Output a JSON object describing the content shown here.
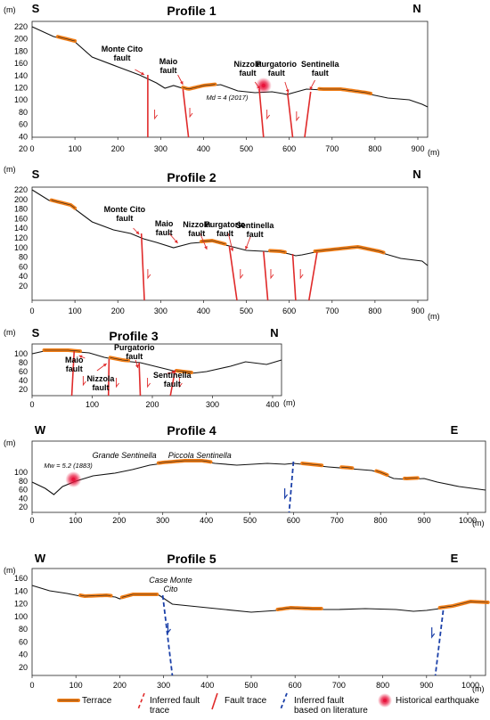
{
  "units": {
    "y": "(m)",
    "x": "(m)"
  },
  "profiles": [
    {
      "title": "Profile 1",
      "left": "S",
      "right": "N",
      "y_ticks": [
        "220",
        "200",
        "180",
        "160",
        "140",
        "120",
        "100",
        "80",
        "60",
        "40",
        "20"
      ],
      "x_ticks": [
        "0",
        "100",
        "200",
        "300",
        "400",
        "500",
        "600",
        "700",
        "800",
        "900"
      ],
      "faults": [
        {
          "label": "Monte Cito\nfault"
        },
        {
          "label": "Maio\nfault"
        },
        {
          "label": "Nizzola\nfault"
        },
        {
          "label": "Purgatorio\nfault"
        },
        {
          "label": "Sentinella\nfault"
        }
      ],
      "quake": {
        "label": "Md = 4 (2017)"
      }
    },
    {
      "title": "Profile 2",
      "left": "S",
      "right": "N",
      "y_ticks": [
        "220",
        "200",
        "180",
        "160",
        "140",
        "120",
        "100",
        "80",
        "60",
        "40",
        "20"
      ],
      "x_ticks": [
        "0",
        "100",
        "200",
        "300",
        "400",
        "500",
        "600",
        "700",
        "800",
        "900"
      ],
      "faults": [
        {
          "label": "Monte Cito\nfault"
        },
        {
          "label": "Maio\nfault"
        },
        {
          "label": "Nizzola\nfault"
        },
        {
          "label": "Purgatorio\nfault"
        },
        {
          "label": "Sentinella\nfault"
        }
      ]
    },
    {
      "title": "Profile 3",
      "left": "S",
      "right": "N",
      "y_ticks": [
        "100",
        "80",
        "60",
        "40",
        "20"
      ],
      "x_ticks": [
        "0",
        "100",
        "200",
        "300",
        "400"
      ],
      "faults": [
        {
          "label": "Maio\nfault"
        },
        {
          "label": "Nizzola\nfault"
        },
        {
          "label": "Purgatorio\nfault"
        },
        {
          "label": "Sentinella\nfault"
        }
      ]
    },
    {
      "title": "Profile 4",
      "left": "W",
      "right": "E",
      "y_ticks": [
        "100",
        "80",
        "60",
        "40",
        "20"
      ],
      "x_ticks": [
        "0",
        "100",
        "200",
        "300",
        "400",
        "500",
        "600",
        "700",
        "800",
        "900",
        "1000"
      ],
      "place_labels": [
        "Grande Sentinella",
        "Piccola Sentinella"
      ],
      "quake": {
        "label": "Mw = 5.2 (1883)"
      }
    },
    {
      "title": "Profile 5",
      "left": "W",
      "right": "E",
      "y_ticks": [
        "160",
        "140",
        "120",
        "100",
        "80",
        "60",
        "40",
        "20"
      ],
      "x_ticks": [
        "0",
        "100",
        "200",
        "300",
        "400",
        "500",
        "600",
        "700",
        "800",
        "900",
        "1000"
      ],
      "place_labels": [
        "Case Monte\nCito"
      ]
    }
  ],
  "legend": [
    {
      "label": "Terrace"
    },
    {
      "label": "Inferred fault\ntrace"
    },
    {
      "label": "Fault trace"
    },
    {
      "label": "Inferred fault\nbased on literature"
    },
    {
      "label": "Historical earthquake"
    }
  ],
  "colors": {
    "fault": "#e02a2a",
    "inferred": "#1a3fa8",
    "terrace": "#f07d16",
    "quake": "#e8143c"
  }
}
